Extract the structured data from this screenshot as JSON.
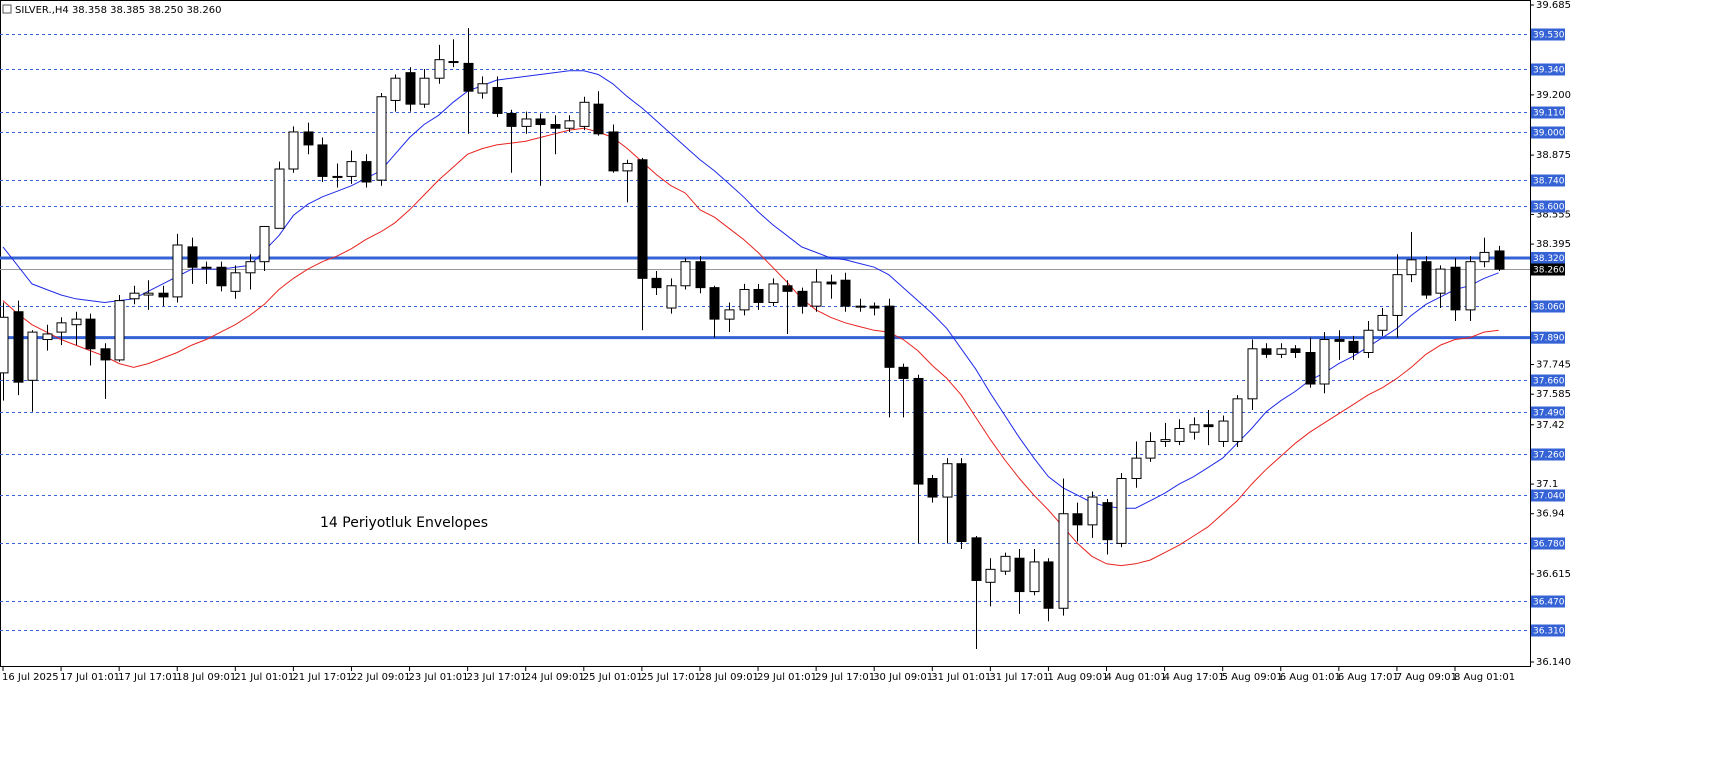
{
  "chart_data": {
    "type": "candlestick",
    "title": "SILVER.,H4 38.358 38.385 38.250 38.260",
    "annotation": "14 Periyotluk Envelopes",
    "categories": [
      "16 Jul 2025",
      null,
      null,
      null,
      "17 Jul 01:01",
      null,
      null,
      null,
      "17 Jul 17:01",
      null,
      null,
      null,
      "18 Jul 09:01",
      null,
      null,
      null,
      "21 Jul 01:01",
      null,
      null,
      null,
      "21 Jul 17:01",
      null,
      null,
      null,
      "22 Jul 09:01",
      null,
      null,
      null,
      "23 Jul 01:01",
      null,
      null,
      null,
      "23 Jul 17:01",
      null,
      null,
      null,
      "24 Jul 09:01",
      null,
      null,
      null,
      "25 Jul 01:01",
      null,
      null,
      null,
      "25 Jul 17:01",
      null,
      null,
      null,
      "28 Jul 09:01",
      null,
      null,
      null,
      "29 Jul 01:01",
      null,
      null,
      null,
      "29 Jul 17:01",
      null,
      null,
      null,
      "30 Jul 09:01",
      null,
      null,
      null,
      "31 Jul 01:01",
      null,
      null,
      null,
      "31 Jul 17:01",
      null,
      null,
      null,
      "1 Aug 09:01",
      null,
      null,
      null,
      "4 Aug 01:01",
      null,
      null,
      null,
      "4 Aug 17:01",
      null,
      null,
      null,
      "5 Aug 09:01",
      null,
      null,
      null,
      "6 Aug 01:01",
      null,
      null,
      null,
      "6 Aug 17:01",
      null,
      null,
      null,
      "7 Aug 09:01",
      null,
      null,
      null,
      "8 Aug 01:01",
      null,
      null,
      null
    ],
    "open": [
      37.7,
      38.03,
      37.66,
      37.88,
      37.92,
      37.96,
      37.99,
      37.83,
      37.77,
      38.1,
      38.12,
      38.13,
      38.11,
      38.38,
      38.27,
      38.27,
      38.14,
      38.24,
      38.3,
      38.48,
      38.8,
      39.0,
      38.93,
      38.76,
      38.76,
      38.84,
      38.74,
      39.17,
      39.32,
      39.15,
      39.29,
      39.38,
      39.37,
      39.21,
      39.24,
      39.1,
      39.03,
      39.07,
      39.04,
      39.02,
      39.03,
      39.15,
      39.0,
      38.79,
      38.85,
      38.21,
      38.05,
      38.17,
      38.3,
      38.16,
      37.99,
      38.04,
      38.15,
      38.08,
      38.17,
      38.14,
      38.06,
      38.19,
      38.2,
      38.06,
      38.06,
      38.06,
      37.73,
      37.67,
      37.13,
      37.03,
      37.21,
      36.81,
      36.57,
      36.63,
      36.7,
      36.52,
      36.68,
      36.43,
      36.94,
      36.88,
      37.0,
      36.78,
      37.13,
      37.24,
      37.33,
      37.33,
      37.38,
      37.42,
      37.33,
      37.33,
      37.56,
      37.83,
      37.8,
      37.83,
      37.81,
      37.64,
      37.88,
      37.87,
      37.81,
      37.93,
      38.01,
      38.23,
      38.3,
      38.13,
      38.27,
      38.04,
      38.3,
      38.358
    ],
    "high": [
      38.08,
      38.09,
      37.93,
      37.96,
      38.0,
      38.03,
      38.02,
      37.86,
      38.12,
      38.17,
      38.2,
      38.17,
      38.45,
      38.43,
      38.3,
      38.3,
      38.28,
      38.34,
      38.49,
      38.84,
      39.03,
      39.05,
      38.97,
      38.83,
      38.9,
      38.88,
      39.21,
      39.31,
      39.35,
      39.34,
      39.47,
      39.5,
      39.56,
      39.3,
      39.3,
      39.12,
      39.11,
      39.1,
      39.09,
      39.09,
      39.19,
      39.22,
      39.04,
      38.85,
      38.86,
      38.25,
      38.21,
      38.32,
      38.33,
      38.17,
      38.08,
      38.18,
      38.18,
      38.21,
      38.2,
      38.16,
      38.26,
      38.23,
      38.24,
      38.1,
      38.08,
      38.1,
      37.75,
      37.69,
      37.15,
      37.24,
      37.24,
      36.82,
      36.7,
      36.73,
      36.75,
      36.75,
      36.7,
      37.13,
      37.0,
      37.06,
      37.02,
      37.16,
      37.33,
      37.38,
      37.43,
      37.45,
      37.46,
      37.5,
      37.47,
      37.58,
      37.88,
      37.86,
      37.86,
      37.85,
      37.89,
      37.92,
      37.93,
      37.9,
      37.98,
      38.05,
      38.34,
      38.46,
      38.33,
      38.28,
      38.32,
      38.33,
      38.43,
      38.385
    ],
    "low": [
      37.55,
      37.58,
      37.49,
      37.82,
      37.85,
      37.85,
      37.74,
      37.56,
      37.76,
      38.07,
      38.04,
      38.06,
      38.08,
      38.18,
      38.18,
      38.14,
      38.1,
      38.15,
      38.25,
      38.48,
      38.78,
      38.88,
      38.73,
      38.7,
      38.72,
      38.7,
      38.71,
      39.11,
      39.11,
      39.13,
      39.26,
      39.35,
      38.99,
      39.18,
      39.08,
      38.78,
      38.99,
      38.71,
      38.88,
      39.0,
      39.01,
      38.98,
      38.78,
      38.62,
      37.93,
      38.12,
      38.02,
      38.15,
      38.13,
      37.89,
      37.92,
      38.01,
      38.04,
      38.06,
      37.91,
      38.02,
      38.03,
      38.1,
      38.03,
      38.03,
      38.01,
      37.46,
      37.46,
      36.78,
      37.0,
      36.78,
      36.75,
      36.21,
      36.44,
      36.61,
      36.4,
      36.5,
      36.36,
      36.39,
      36.79,
      36.81,
      36.72,
      36.76,
      37.08,
      37.22,
      37.3,
      37.31,
      37.34,
      37.31,
      37.3,
      37.3,
      37.5,
      37.78,
      37.78,
      37.78,
      37.62,
      37.59,
      37.77,
      37.77,
      37.78,
      37.9,
      37.89,
      38.19,
      38.1,
      38.05,
      37.98,
      37.98,
      38.27,
      38.25
    ],
    "close": [
      38.0,
      37.65,
      37.92,
      37.91,
      37.97,
      37.99,
      37.83,
      37.77,
      38.09,
      38.13,
      38.13,
      38.11,
      38.39,
      38.27,
      38.27,
      38.17,
      38.24,
      38.3,
      38.49,
      38.8,
      39.0,
      38.93,
      38.76,
      38.76,
      38.84,
      38.73,
      39.19,
      39.29,
      39.15,
      39.29,
      39.39,
      39.38,
      39.22,
      39.26,
      39.1,
      39.03,
      39.07,
      39.04,
      39.02,
      39.06,
      39.16,
      38.99,
      38.79,
      38.83,
      38.21,
      38.16,
      38.17,
      38.3,
      38.16,
      37.99,
      38.04,
      38.15,
      38.08,
      38.18,
      38.14,
      38.06,
      38.19,
      38.18,
      38.06,
      38.06,
      38.05,
      37.73,
      37.67,
      37.1,
      37.03,
      37.21,
      36.79,
      36.58,
      36.64,
      36.71,
      36.52,
      36.68,
      36.43,
      36.94,
      36.88,
      37.03,
      36.8,
      37.13,
      37.24,
      37.33,
      37.34,
      37.4,
      37.42,
      37.41,
      37.44,
      37.56,
      37.83,
      37.8,
      37.83,
      37.81,
      37.64,
      37.88,
      37.87,
      37.81,
      37.93,
      38.01,
      38.23,
      38.31,
      38.12,
      38.26,
      38.04,
      38.3,
      38.35,
      38.26
    ],
    "up_color": "#ffffff",
    "down_color": "#000000",
    "series": [
      {
        "color": "#1f2be8",
        "values": [
          38.38,
          38.28,
          38.18,
          38.15,
          38.12,
          38.1,
          38.09,
          38.08,
          38.09,
          38.1,
          38.14,
          38.18,
          38.22,
          38.26,
          38.26,
          38.26,
          38.27,
          38.28,
          38.36,
          38.44,
          38.55,
          38.61,
          38.65,
          38.68,
          38.71,
          38.75,
          38.79,
          38.88,
          38.97,
          39.04,
          39.09,
          39.16,
          39.22,
          39.25,
          39.28,
          39.29,
          39.3,
          39.31,
          39.32,
          39.33,
          39.33,
          39.31,
          39.26,
          39.19,
          39.13,
          39.06,
          38.99,
          38.92,
          38.85,
          38.79,
          38.72,
          38.65,
          38.57,
          38.5,
          38.44,
          38.38,
          38.35,
          38.32,
          38.31,
          38.29,
          38.27,
          38.23,
          38.16,
          38.09,
          38.02,
          37.94,
          37.83,
          37.72,
          37.59,
          37.47,
          37.35,
          37.24,
          37.14,
          37.08,
          37.04,
          37.0,
          36.98,
          36.97,
          36.97,
          37.01,
          37.05,
          37.1,
          37.14,
          37.19,
          37.24,
          37.32,
          37.4,
          37.49,
          37.55,
          37.6,
          37.66,
          37.7,
          37.75,
          37.79,
          37.84,
          37.89,
          37.94,
          38.01,
          38.07,
          38.11,
          38.15,
          38.17,
          38.21,
          38.24
        ]
      },
      {
        "color": "#e8231f",
        "values": [
          38.09,
          38.02,
          37.96,
          37.92,
          37.88,
          37.85,
          37.82,
          37.79,
          37.75,
          37.73,
          37.75,
          37.78,
          37.81,
          37.85,
          37.88,
          37.92,
          37.96,
          38.01,
          38.07,
          38.15,
          38.21,
          38.26,
          38.3,
          38.33,
          38.37,
          38.42,
          38.46,
          38.51,
          38.58,
          38.66,
          38.74,
          38.81,
          38.88,
          38.91,
          38.93,
          38.94,
          38.95,
          38.97,
          38.99,
          39.01,
          39.02,
          39.0,
          38.97,
          38.91,
          38.84,
          38.77,
          38.71,
          38.67,
          38.58,
          38.54,
          38.48,
          38.42,
          38.35,
          38.27,
          38.19,
          38.1,
          38.04,
          38.0,
          37.97,
          37.95,
          37.93,
          37.92,
          37.88,
          37.82,
          37.74,
          37.67,
          37.58,
          37.46,
          37.34,
          37.23,
          37.13,
          37.04,
          36.96,
          36.87,
          36.78,
          36.71,
          36.67,
          36.66,
          36.67,
          36.69,
          36.73,
          36.77,
          36.82,
          36.87,
          36.94,
          37.01,
          37.1,
          37.18,
          37.25,
          37.32,
          37.38,
          37.43,
          37.48,
          37.53,
          37.58,
          37.62,
          37.67,
          37.73,
          37.8,
          37.85,
          37.88,
          37.89,
          37.92,
          37.93
        ]
      }
    ],
    "ylim": [
      36.14,
      39.685
    ],
    "yticks": [
      39.685,
      {
        "value": 39.2,
        "label": "39.200"
      },
      38.875,
      38.555,
      38.395,
      37.745,
      37.585,
      37.42,
      37.1,
      36.94,
      36.615,
      {
        "value": 36.14,
        "label": "36.140"
      }
    ],
    "levels": [
      {
        "value": 39.53,
        "label": "39.530"
      },
      {
        "value": 39.34,
        "label": "39.340"
      },
      {
        "value": 39.11,
        "label": "39.110"
      },
      {
        "value": 39.0,
        "label": "39.000"
      },
      {
        "value": 38.74,
        "label": "38.740"
      },
      {
        "value": 38.6,
        "label": "38.600"
      },
      {
        "value": 38.06,
        "label": "38.060"
      },
      {
        "value": 37.66,
        "label": "37.660"
      },
      {
        "value": 37.49,
        "label": "37.490"
      },
      {
        "value": 37.26,
        "label": "37.260"
      },
      {
        "value": 37.04,
        "label": "37.040"
      },
      {
        "value": 36.78,
        "label": "36.780"
      },
      {
        "value": 36.47,
        "label": "36.470"
      },
      {
        "value": 36.31,
        "label": "36.310"
      }
    ],
    "key_levels": [
      {
        "value": 38.32,
        "label": "38.320"
      },
      {
        "value": 37.89,
        "label": "37.890"
      }
    ],
    "level_color": "#3563d6",
    "current_price": {
      "value": 38.26,
      "label": "38.260"
    },
    "current_price_color": "#000000"
  }
}
